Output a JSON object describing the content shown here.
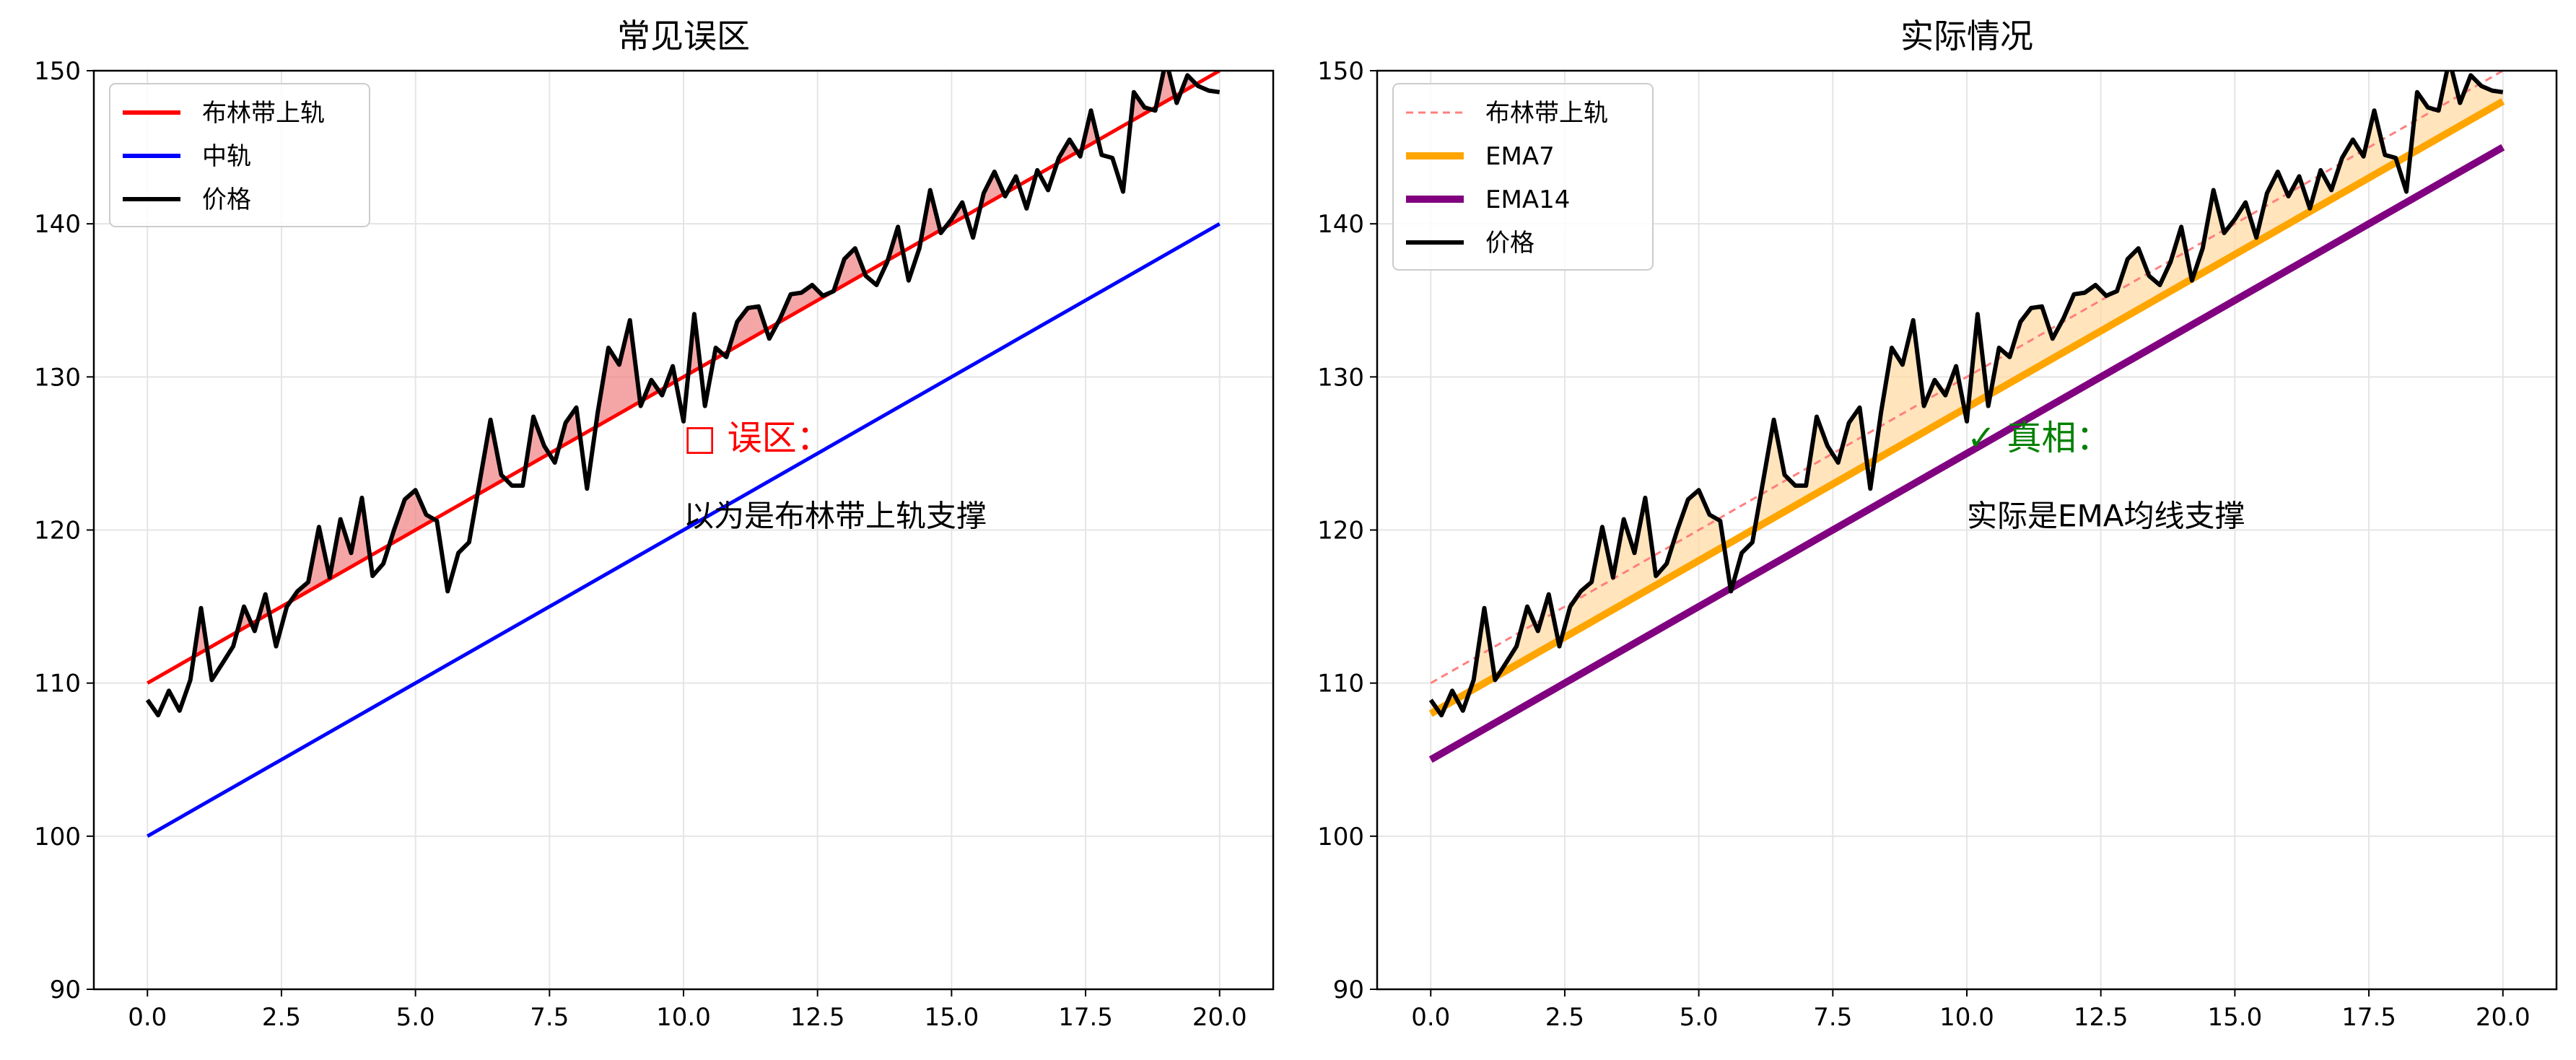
{
  "chart_data": [
    {
      "type": "line",
      "title": "常见误区",
      "xlim": [
        -1,
        21
      ],
      "ylim": [
        90,
        150
      ],
      "x_ticks": [
        "0.0",
        "2.5",
        "5.0",
        "7.5",
        "10.0",
        "12.5",
        "15.0",
        "17.5",
        "20.0"
      ],
      "y_ticks": [
        "90",
        "100",
        "110",
        "120",
        "130",
        "140",
        "150"
      ],
      "grid": true,
      "legend_position": "top-left",
      "legend": [
        "布林带上轨",
        "中轨",
        "价格"
      ],
      "series": [
        {
          "name": "布林带上轨",
          "color": "#ff0000",
          "x": [
            0,
            20
          ],
          "y": [
            110,
            150
          ]
        },
        {
          "name": "中轨",
          "color": "#0000ff",
          "x": [
            0,
            20
          ],
          "y": [
            100,
            140
          ]
        },
        {
          "name": "价格",
          "color": "#000000",
          "y_ref": "price"
        }
      ],
      "fill_between": {
        "between": [
          "价格",
          "布林带上轨"
        ],
        "where": "价格 above 布林带上轨",
        "color": "#f08080"
      },
      "annotations": [
        {
          "head": "□ 误区：",
          "body": "以为是布林带上轨支撑",
          "x": 10,
          "y_head": 126,
          "y_body": 121,
          "color": "#ff0000"
        }
      ]
    },
    {
      "type": "line",
      "title": "实际情况",
      "xlim": [
        -1,
        21
      ],
      "ylim": [
        90,
        150
      ],
      "x_ticks": [
        "0.0",
        "2.5",
        "5.0",
        "7.5",
        "10.0",
        "12.5",
        "15.0",
        "17.5",
        "20.0"
      ],
      "y_ticks": [
        "90",
        "100",
        "110",
        "120",
        "130",
        "140",
        "150"
      ],
      "grid": true,
      "legend_position": "top-left",
      "legend": [
        "布林带上轨",
        "EMA7",
        "EMA14",
        "价格"
      ],
      "series": [
        {
          "name": "布林带上轨",
          "color": "#ff7f7f",
          "style": "dashed",
          "x": [
            0,
            20
          ],
          "y": [
            110,
            150
          ]
        },
        {
          "name": "EMA7",
          "color": "#ffa500",
          "x": [
            0,
            20
          ],
          "y": [
            108,
            148
          ]
        },
        {
          "name": "EMA14",
          "color": "#800080",
          "x": [
            0,
            20
          ],
          "y": [
            105,
            145
          ]
        },
        {
          "name": "价格",
          "color": "#000000",
          "y_ref": "price"
        }
      ],
      "fill_between": {
        "between": [
          "价格",
          "EMA7"
        ],
        "where": "价格 above EMA7",
        "color": "#ffd9a0"
      },
      "annotations": [
        {
          "head": "✓ 真相：",
          "body": "实际是EMA均线支撑",
          "x": 10,
          "y_head": 126,
          "y_body": 121,
          "color": "#008000"
        }
      ]
    }
  ],
  "price": {
    "x": [
      0,
      0.2,
      0.4,
      0.6,
      0.8,
      1.0,
      1.2,
      1.4,
      1.6,
      1.8,
      2.0,
      2.2,
      2.4,
      2.6,
      2.8,
      3.0,
      3.2,
      3.4,
      3.6,
      3.8,
      4.0,
      4.2,
      4.4,
      4.6,
      4.8,
      5.0,
      5.2,
      5.4,
      5.6,
      5.8,
      6.0,
      6.2,
      6.4,
      6.6,
      6.8,
      7.0,
      7.2,
      7.4,
      7.6,
      7.8,
      8.0,
      8.2,
      8.4,
      8.6,
      8.8,
      9.0,
      9.2,
      9.4,
      9.6,
      9.8,
      10.0,
      10.2,
      10.4,
      10.6,
      10.8,
      11.0,
      11.2,
      11.4,
      11.6,
      11.8,
      12.0,
      12.2,
      12.4,
      12.6,
      12.8,
      13.0,
      13.2,
      13.4,
      13.6,
      13.8,
      14.0,
      14.2,
      14.4,
      14.6,
      14.8,
      15.0,
      15.2,
      15.4,
      15.6,
      15.8,
      16.0,
      16.2,
      16.4,
      16.6,
      16.8,
      17.0,
      17.2,
      17.4,
      17.6,
      17.8,
      18.0,
      18.2,
      18.4,
      18.6,
      18.8,
      19.0,
      19.2,
      19.4,
      19.6,
      19.8,
      20.0
    ],
    "y": [
      108.9,
      107.9,
      109.5,
      108.2,
      110.2,
      114.9,
      110.2,
      111.3,
      112.4,
      115.0,
      113.4,
      115.8,
      112.4,
      115.0,
      116.0,
      116.6,
      120.2,
      116.9,
      120.7,
      118.5,
      122.1,
      117.0,
      117.8,
      120.0,
      122.0,
      122.6,
      121.0,
      120.6,
      116.0,
      118.5,
      119.2,
      123.2,
      127.2,
      123.6,
      122.9,
      122.9,
      127.4,
      125.5,
      124.4,
      127.0,
      128.0,
      122.7,
      127.7,
      131.9,
      130.8,
      133.7,
      128.1,
      129.8,
      128.8,
      130.7,
      127.1,
      134.1,
      128.1,
      131.9,
      131.3,
      133.6,
      134.5,
      134.6,
      132.5,
      133.8,
      135.4,
      135.5,
      136.0,
      135.3,
      135.6,
      137.7,
      138.4,
      136.6,
      136.0,
      137.5,
      139.8,
      136.3,
      138.4,
      142.2,
      139.4,
      140.3,
      141.4,
      139.1,
      142.0,
      143.4,
      141.8,
      143.1,
      141.0,
      143.5,
      142.2,
      144.3,
      145.5,
      144.4,
      147.4,
      144.5,
      144.3,
      142.1,
      148.6,
      147.6,
      147.4,
      150.7,
      147.9,
      149.7,
      149.0,
      148.7,
      148.6
    ]
  }
}
